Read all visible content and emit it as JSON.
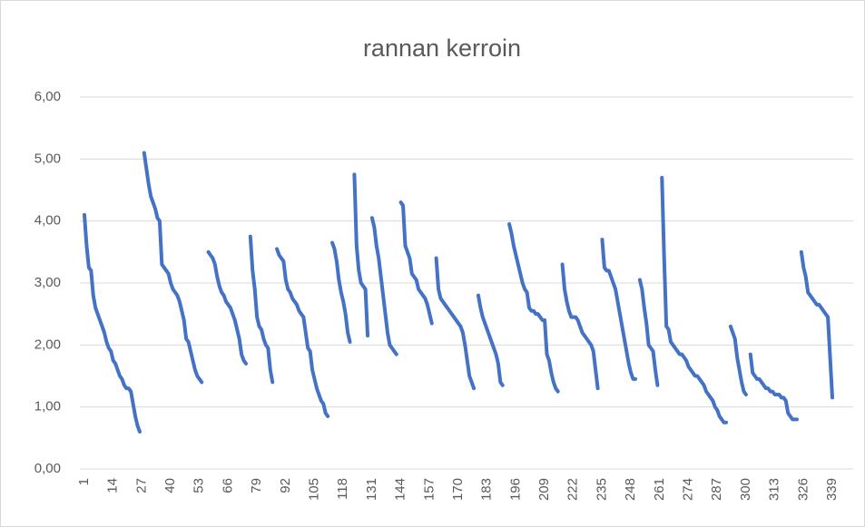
{
  "chart_data": {
    "type": "line",
    "title": "rannan kerroin",
    "categories": [
      1,
      null,
      null,
      null,
      null,
      null,
      null,
      null,
      null,
      null,
      null,
      null,
      null,
      14,
      null,
      null,
      null,
      null,
      null,
      null,
      null,
      null,
      null,
      null,
      null,
      null,
      27,
      null,
      null,
      null,
      null,
      null,
      null,
      null,
      null,
      null,
      null,
      null,
      null,
      40,
      null,
      null,
      null,
      null,
      null,
      null,
      null,
      null,
      null,
      null,
      null,
      null,
      53,
      null,
      null,
      null,
      null,
      null,
      null,
      null,
      null,
      null,
      null,
      null,
      null,
      66,
      null,
      null,
      null,
      null,
      null,
      null,
      null,
      null,
      null,
      null,
      null,
      null,
      79,
      null,
      null,
      null,
      null,
      null,
      null,
      null,
      null,
      null,
      null,
      null,
      null,
      92,
      null,
      null,
      null,
      null,
      null,
      null,
      null,
      null,
      null,
      null,
      null,
      null,
      105,
      null,
      null,
      null,
      null,
      null,
      null,
      null,
      null,
      null,
      null,
      null,
      null,
      118,
      null,
      null,
      null,
      null,
      null,
      null,
      null,
      null,
      null,
      null,
      null,
      null,
      131,
      null,
      null,
      null,
      null,
      null,
      null,
      null,
      null,
      null,
      null,
      null,
      null,
      144,
      null,
      null,
      null,
      null,
      null,
      null,
      null,
      null,
      null,
      null,
      null,
      null,
      157,
      null,
      null,
      null,
      null,
      null,
      null,
      null,
      null,
      null,
      null,
      null,
      null,
      170,
      null,
      null,
      null,
      null,
      null,
      null,
      null,
      null,
      null,
      null,
      null,
      null,
      183,
      null,
      null,
      null,
      null,
      null,
      null,
      null,
      null,
      null,
      null,
      null,
      null,
      196,
      null,
      null,
      null,
      null,
      null,
      null,
      null,
      null,
      null,
      null,
      null,
      null,
      209,
      null,
      null,
      null,
      null,
      null,
      null,
      null,
      null,
      null,
      null,
      null,
      null,
      222,
      null,
      null,
      null,
      null,
      null,
      null,
      null,
      null,
      null,
      null,
      null,
      null,
      235,
      null,
      null,
      null,
      null,
      null,
      null,
      null,
      null,
      null,
      null,
      null,
      null,
      248,
      null,
      null,
      null,
      null,
      null,
      null,
      null,
      null,
      null,
      null,
      null,
      null,
      261,
      null,
      null,
      null,
      null,
      null,
      null,
      null,
      null,
      null,
      null,
      null,
      null,
      274,
      null,
      null,
      null,
      null,
      null,
      null,
      null,
      null,
      null,
      null,
      null,
      null,
      287,
      null,
      null,
      null,
      null,
      null,
      null,
      null,
      null,
      null,
      null,
      null,
      null,
      300,
      null,
      null,
      null,
      null,
      null,
      null,
      null,
      null,
      null,
      null,
      null,
      null,
      313,
      null,
      null,
      null,
      null,
      null,
      null,
      null,
      null,
      null,
      null,
      null,
      null,
      326,
      null,
      null,
      null,
      null,
      null,
      null,
      null,
      null,
      null,
      null,
      null,
      null,
      339
    ],
    "series": [
      {
        "color": "#4472c4",
        "values": [
          4.1,
          3.6,
          3.25,
          3.2,
          2.8,
          2.6,
          2.5,
          2.4,
          2.3,
          2.2,
          2.05,
          1.95,
          1.9,
          1.75,
          1.7,
          1.6,
          1.5,
          1.45,
          1.35,
          1.3,
          1.3,
          1.25,
          1.05,
          0.85,
          0.7,
          0.6,
          null,
          5.1,
          4.85,
          4.6,
          4.4,
          4.3,
          4.2,
          4.05,
          4.0,
          3.3,
          3.25,
          3.2,
          3.15,
          3.0,
          2.9,
          2.85,
          2.8,
          2.7,
          2.55,
          2.4,
          2.1,
          2.05,
          1.9,
          1.75,
          1.6,
          1.5,
          1.45,
          1.4,
          null,
          null,
          3.5,
          3.45,
          3.4,
          3.3,
          3.1,
          2.95,
          2.85,
          2.8,
          2.7,
          2.65,
          2.6,
          2.5,
          2.4,
          2.25,
          2.1,
          1.85,
          1.75,
          1.7,
          null,
          3.75,
          3.2,
          2.9,
          2.45,
          2.3,
          2.25,
          2.1,
          2.0,
          1.95,
          1.6,
          1.4,
          null,
          3.55,
          3.45,
          3.4,
          3.35,
          3.05,
          2.9,
          2.85,
          2.75,
          2.7,
          2.65,
          2.55,
          2.5,
          2.45,
          2.2,
          1.95,
          1.9,
          1.6,
          1.45,
          1.3,
          1.2,
          1.1,
          1.05,
          0.9,
          0.85,
          null,
          3.65,
          3.55,
          3.35,
          3.05,
          2.85,
          2.7,
          2.5,
          2.2,
          2.05,
          null,
          4.75,
          3.6,
          3.2,
          3.0,
          2.95,
          2.9,
          2.15,
          null,
          4.05,
          3.9,
          3.6,
          3.4,
          3.1,
          2.8,
          2.5,
          2.2,
          2.0,
          1.95,
          1.9,
          1.85,
          null,
          4.3,
          4.25,
          3.6,
          3.5,
          3.4,
          3.15,
          3.1,
          3.05,
          2.9,
          2.85,
          2.8,
          2.75,
          2.65,
          2.5,
          2.35,
          null,
          3.4,
          2.9,
          2.75,
          2.7,
          2.65,
          2.6,
          2.55,
          2.5,
          2.45,
          2.4,
          2.35,
          2.3,
          2.2,
          2.0,
          1.75,
          1.5,
          1.4,
          1.3,
          null,
          2.8,
          2.6,
          2.45,
          2.35,
          2.25,
          2.15,
          2.05,
          1.95,
          1.85,
          1.7,
          1.4,
          1.35,
          null,
          null,
          3.95,
          3.8,
          3.6,
          3.45,
          3.3,
          3.15,
          3.0,
          2.9,
          2.85,
          2.6,
          2.55,
          2.55,
          2.5,
          2.5,
          2.45,
          2.4,
          2.4,
          1.85,
          1.75,
          1.55,
          1.4,
          1.3,
          1.25,
          null,
          3.3,
          2.9,
          2.7,
          2.55,
          2.45,
          2.45,
          2.45,
          2.4,
          2.3,
          2.2,
          2.15,
          2.1,
          2.05,
          2.0,
          1.9,
          1.6,
          1.3,
          null,
          3.7,
          3.25,
          3.2,
          3.2,
          3.1,
          3.0,
          2.9,
          2.7,
          2.5,
          2.3,
          2.1,
          1.9,
          1.7,
          1.55,
          1.45,
          1.45,
          null,
          3.05,
          2.9,
          2.6,
          2.35,
          2.0,
          1.95,
          1.9,
          1.6,
          1.35,
          null,
          4.7,
          3.4,
          2.3,
          2.25,
          2.05,
          2.0,
          1.95,
          1.9,
          1.85,
          1.85,
          1.8,
          1.75,
          1.65,
          1.6,
          1.55,
          1.5,
          1.5,
          1.45,
          1.4,
          1.35,
          1.25,
          1.2,
          1.15,
          1.1,
          1.0,
          0.95,
          0.85,
          0.8,
          0.75,
          0.75,
          null,
          2.3,
          2.2,
          2.1,
          1.8,
          1.6,
          1.4,
          1.25,
          1.2,
          null,
          1.85,
          1.55,
          1.5,
          1.45,
          1.45,
          1.4,
          1.35,
          1.3,
          1.3,
          1.25,
          1.25,
          1.2,
          1.2,
          1.2,
          1.15,
          1.15,
          1.1,
          0.9,
          0.85,
          0.8,
          0.8,
          0.8,
          null,
          3.5,
          3.25,
          3.1,
          2.85,
          2.8,
          2.75,
          2.7,
          2.65,
          2.65,
          2.6,
          2.55,
          2.5,
          2.45,
          1.8,
          1.15
        ]
      }
    ],
    "ylim": [
      0,
      6
    ],
    "yticks": [
      {
        "value": 0,
        "label": "0,00"
      },
      {
        "value": 1,
        "label": "1,00"
      },
      {
        "value": 2,
        "label": "2,00"
      },
      {
        "value": 3,
        "label": "3,00"
      },
      {
        "value": 4,
        "label": "4,00"
      },
      {
        "value": 5,
        "label": "5,00"
      },
      {
        "value": 6,
        "label": "6,00"
      }
    ],
    "grid": true
  }
}
